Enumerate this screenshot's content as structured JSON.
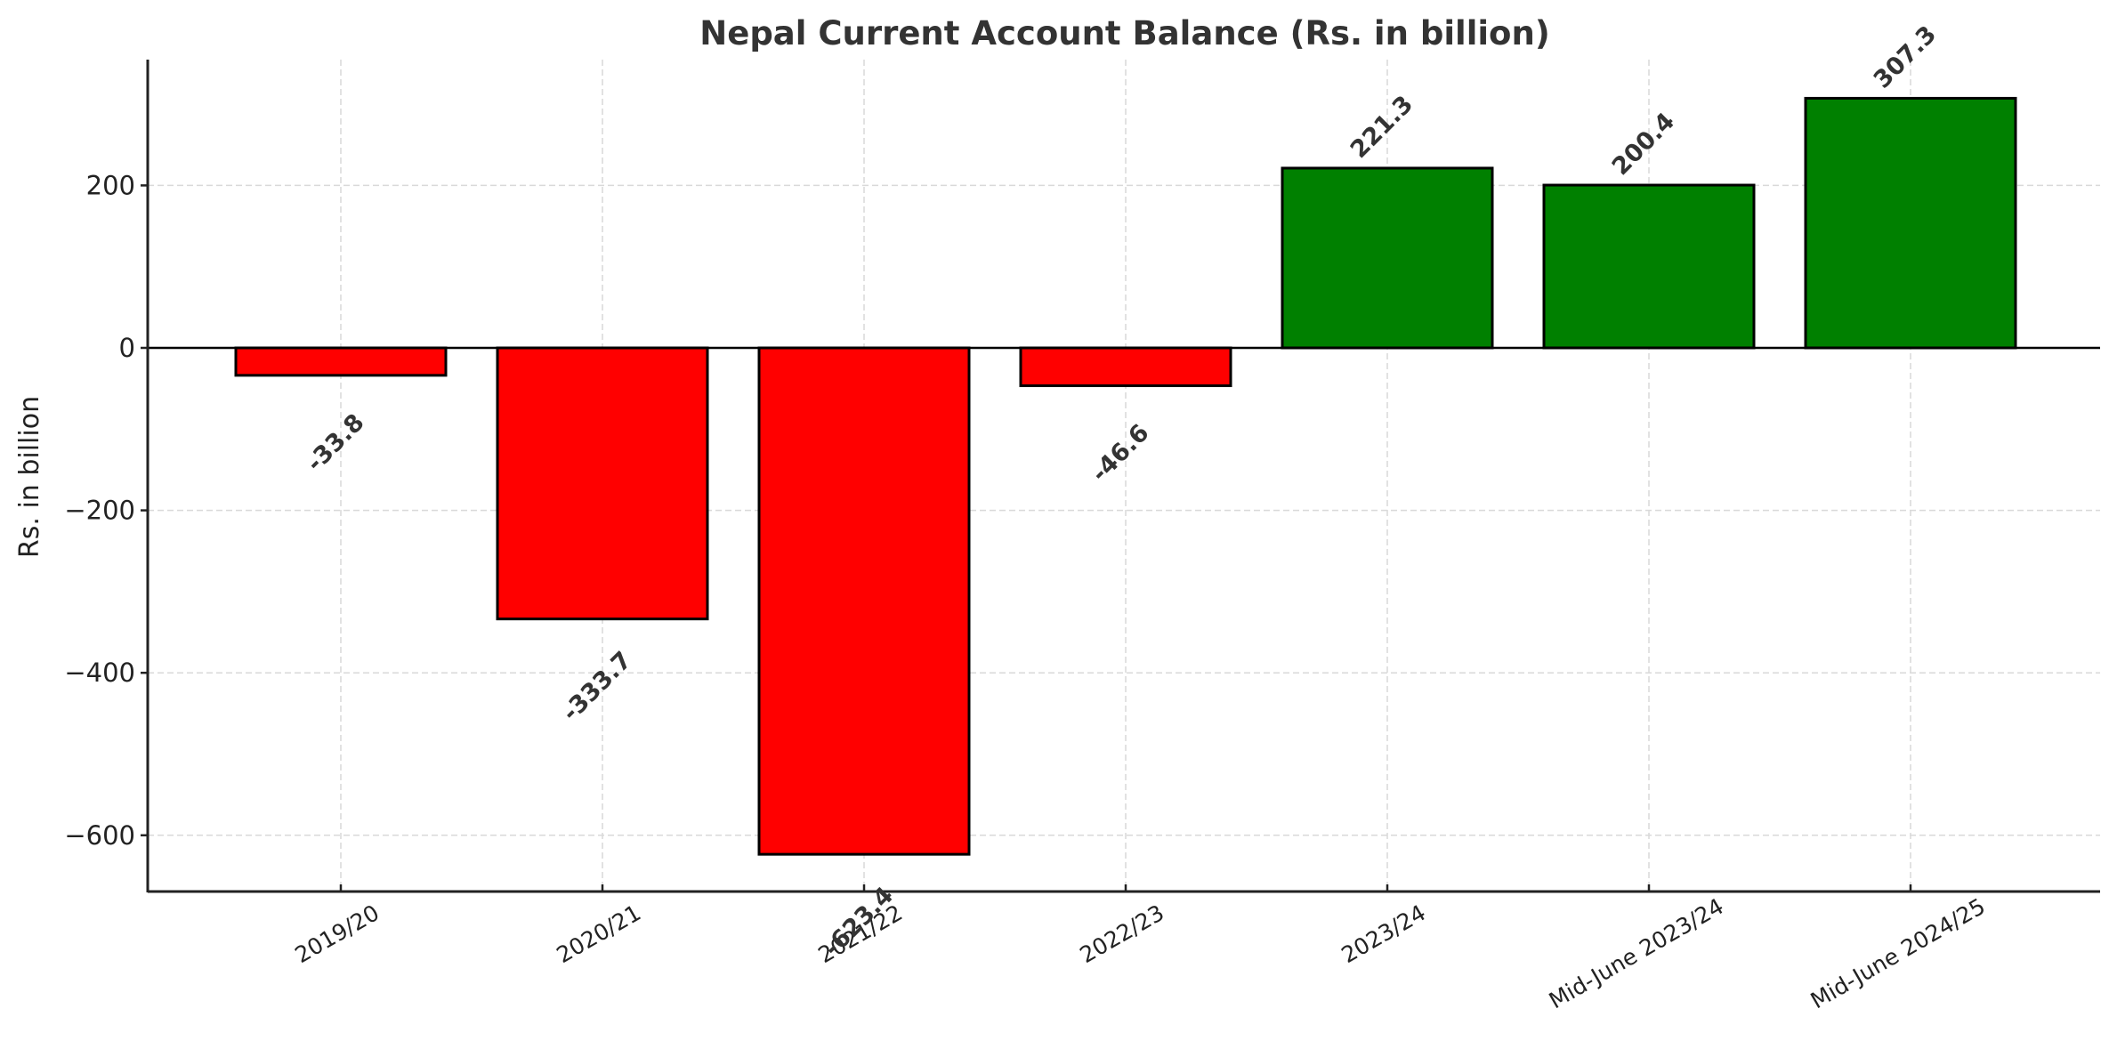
{
  "chart_data": {
    "type": "bar",
    "title": "Nepal Current Account Balance (Rs. in billion)",
    "xlabel": "",
    "ylabel": "Rs. in billion",
    "categories": [
      "2019/20",
      "2020/21",
      "2021/22",
      "2022/23",
      "2023/24",
      "Mid-June 2023/24",
      "Mid-June 2024/25"
    ],
    "values": [
      -33.8,
      -333.7,
      -623.4,
      -46.6,
      221.3,
      200.4,
      307.3
    ],
    "value_labels": [
      "-33.8",
      "-333.7",
      "-623.4",
      "-46.6",
      "221.3",
      "200.4",
      "307.3"
    ],
    "ylim": [
      -669,
      355
    ],
    "yticks": [
      200,
      0,
      -200,
      -400,
      -600
    ],
    "ytick_labels": [
      "200",
      "0",
      "−200",
      "−400",
      "−600"
    ],
    "grid": true,
    "grid_style": "dashed",
    "legend": null,
    "colors": {
      "negative": "#ff0000",
      "positive": "#008000",
      "edge": "#000000",
      "grid": "#d9d9d9",
      "text": "#333333"
    }
  }
}
